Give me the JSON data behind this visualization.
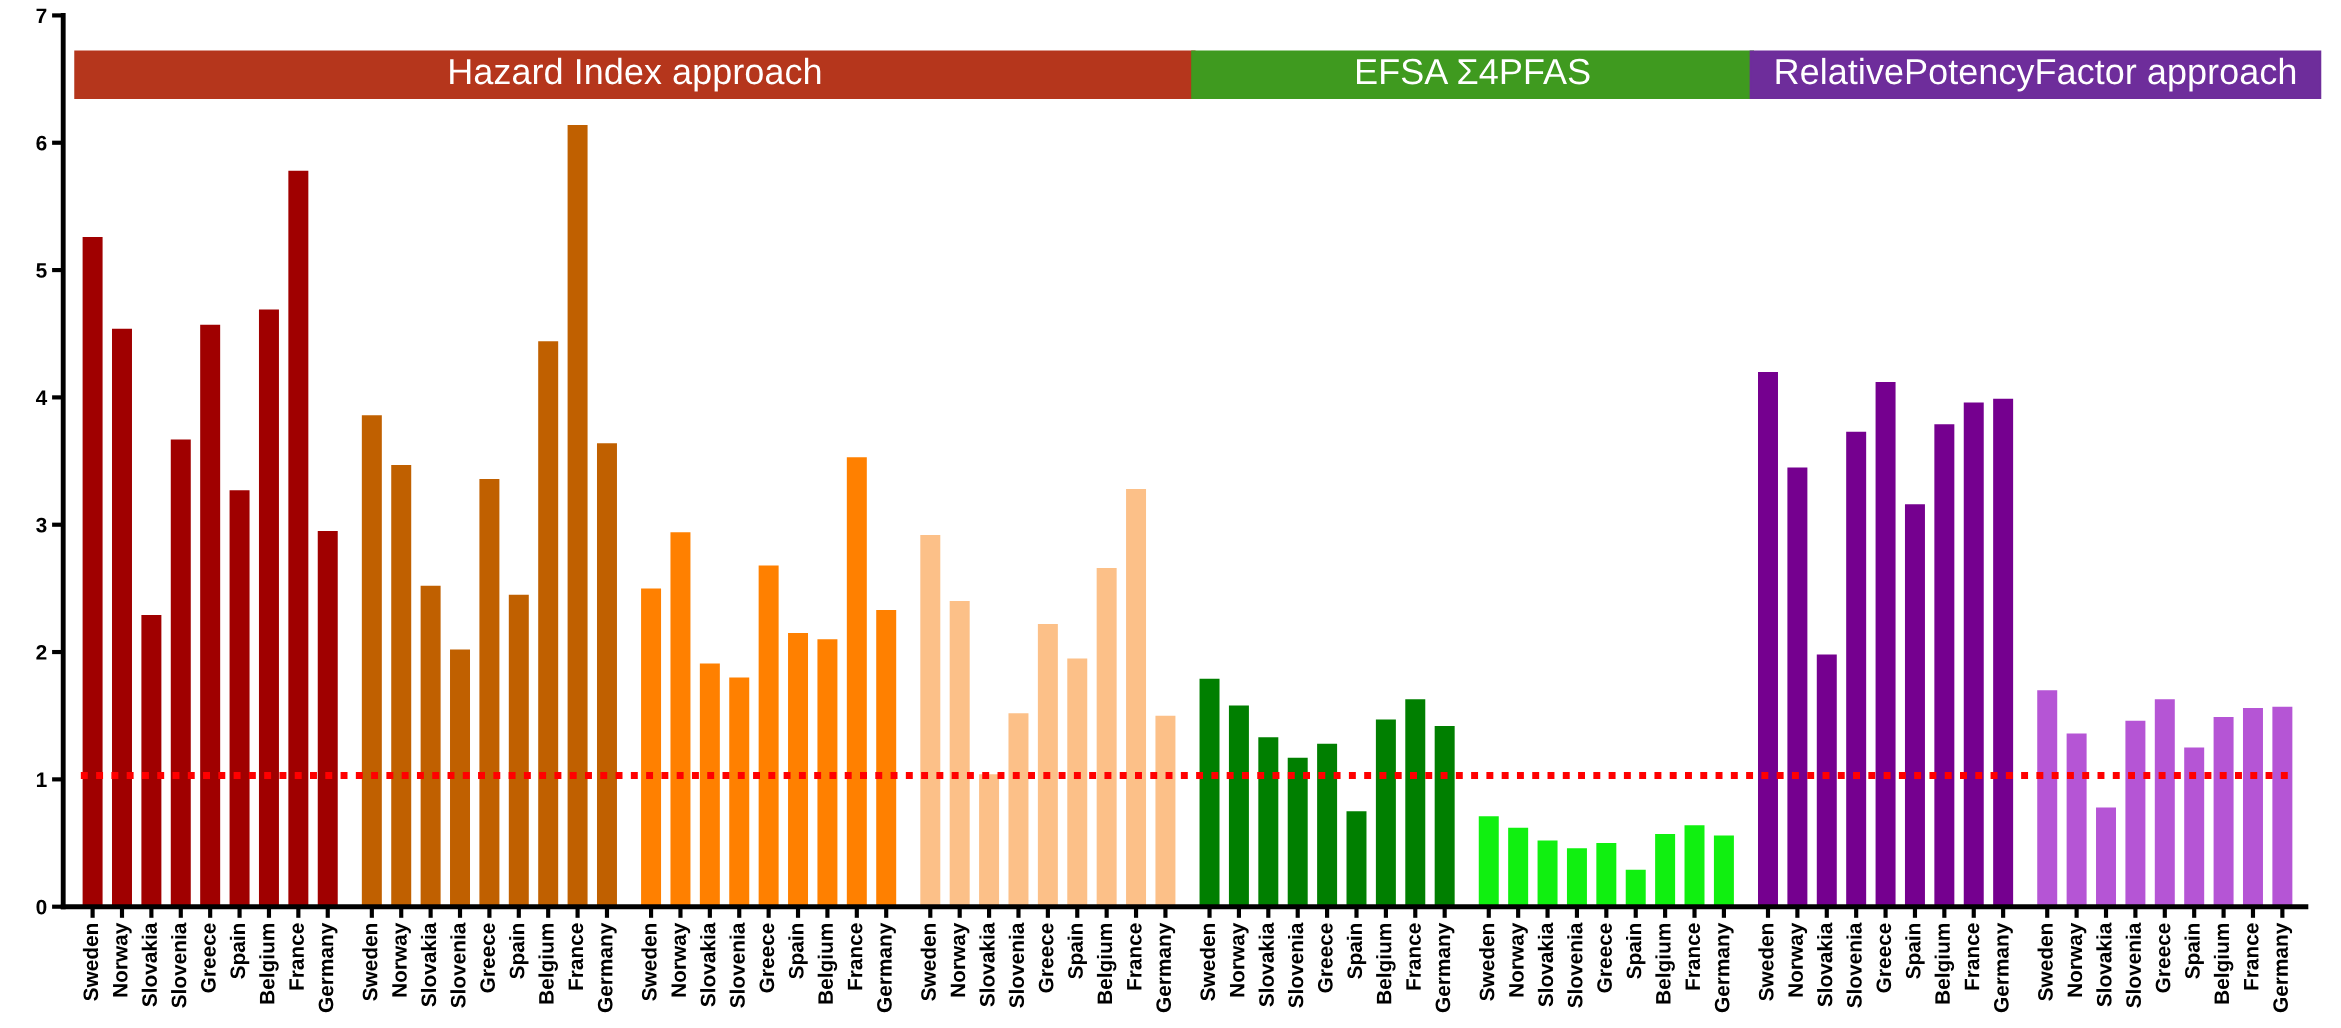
{
  "chart_data": {
    "type": "bar",
    "categories": [
      "Sweden",
      "Norway",
      "Slovakia",
      "Slovenia",
      "Greece",
      "Spain",
      "Belgium",
      "France",
      "Germany",
      "Sweden",
      "Norway",
      "Slovakia",
      "Slovenia",
      "Greece",
      "Spain",
      "Belgium",
      "France",
      "Germany",
      "Sweden",
      "Norway",
      "Slovakia",
      "Slovenia",
      "Greece",
      "Spain",
      "Belgium",
      "France",
      "Germany",
      "Sweden",
      "Norway",
      "Slovakia",
      "Slovenia",
      "Greece",
      "Spain",
      "Belgium",
      "France",
      "Germany",
      "Sweden",
      "Norway",
      "Slovakia",
      "Slovenia",
      "Greece",
      "Spain",
      "Belgium",
      "France",
      "Germany",
      "Sweden",
      "Norway",
      "Slovakia",
      "Slovenia",
      "Greece",
      "Spain",
      "Belgium",
      "France",
      "Germany",
      "Sweden",
      "Norway",
      "Slovakia",
      "Slovenia",
      "Greece",
      "Spain",
      "Belgium",
      "France",
      "Germany",
      "Sweden",
      "Norway",
      "Slovakia",
      "Slovenia",
      "Greece",
      "Spain",
      "Belgium",
      "France",
      "Germany"
    ],
    "values": [
      5.26,
      4.54,
      2.29,
      3.67,
      4.57,
      3.27,
      4.69,
      5.78,
      2.95,
      3.86,
      3.47,
      2.52,
      2.02,
      3.36,
      2.45,
      4.44,
      6.14,
      3.64,
      2.5,
      2.94,
      1.91,
      1.8,
      2.68,
      2.15,
      2.1,
      3.53,
      2.33,
      2.92,
      2.4,
      1.04,
      1.52,
      2.22,
      1.95,
      2.66,
      3.28,
      1.5,
      1.79,
      1.58,
      1.33,
      1.17,
      1.28,
      0.75,
      1.47,
      1.63,
      1.42,
      0.71,
      0.62,
      0.52,
      0.46,
      0.5,
      0.29,
      0.57,
      0.64,
      0.56,
      4.2,
      3.45,
      1.98,
      3.73,
      4.12,
      3.16,
      3.79,
      3.96,
      3.99,
      1.7,
      1.36,
      0.78,
      1.46,
      1.63,
      1.25,
      1.49,
      1.56,
      1.57
    ],
    "colors": [
      "#a00000",
      "#a00000",
      "#a00000",
      "#a00000",
      "#a00000",
      "#a00000",
      "#a00000",
      "#a00000",
      "#a00000",
      "#c06000",
      "#c06000",
      "#c06000",
      "#c06000",
      "#c06000",
      "#c06000",
      "#c06000",
      "#c06000",
      "#c06000",
      "#ff8000",
      "#ff8000",
      "#ff8000",
      "#ff8000",
      "#ff8000",
      "#ff8000",
      "#ff8000",
      "#ff8000",
      "#ff8000",
      "#fcc088",
      "#fcc088",
      "#fcc088",
      "#fcc088",
      "#fcc088",
      "#fcc088",
      "#fcc088",
      "#fcc088",
      "#fcc088",
      "#007f00",
      "#007f00",
      "#007f00",
      "#007f00",
      "#007f00",
      "#007f00",
      "#007f00",
      "#007f00",
      "#007f00",
      "#10f010",
      "#10f010",
      "#10f010",
      "#10f010",
      "#10f010",
      "#10f010",
      "#10f010",
      "#10f010",
      "#10f010",
      "#75008f",
      "#75008f",
      "#75008f",
      "#75008f",
      "#75008f",
      "#75008f",
      "#75008f",
      "#75008f",
      "#75008f",
      "#b555d5",
      "#b555d5",
      "#b555d5",
      "#b555d5",
      "#b555d5",
      "#b555d5",
      "#b555d5",
      "#b555d5",
      "#b555d5"
    ],
    "ylim": [
      0,
      7
    ],
    "yticks": [
      0,
      1,
      2,
      3,
      4,
      5,
      6,
      7
    ],
    "ref_lines": [
      {
        "axis": "y",
        "value": 1.03,
        "color": "#ff0000",
        "line_style": "dotted"
      }
    ],
    "annotations": [
      "Hazard Index approach",
      "EFSA Σ4PFAS",
      "RelativePotencyFactor approach"
    ]
  }
}
